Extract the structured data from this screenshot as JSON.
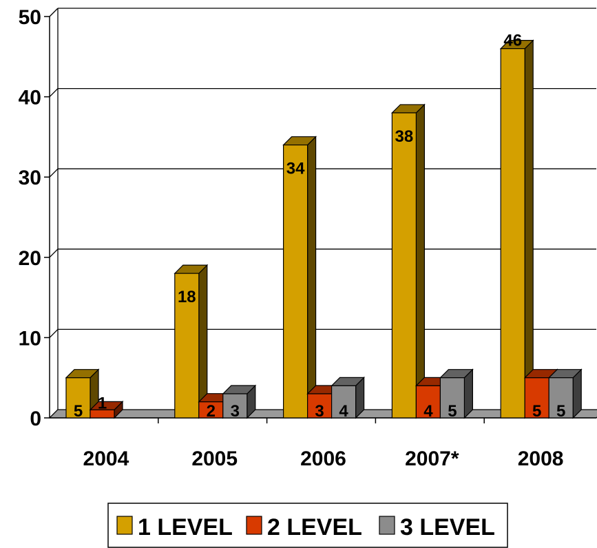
{
  "chart_data": {
    "type": "bar",
    "categories": [
      "2004",
      "2005",
      "2006",
      "2007*",
      "2008"
    ],
    "series": [
      {
        "name": "1 LEVEL",
        "color": "#D4A000",
        "values": [
          5,
          18,
          34,
          38,
          46
        ]
      },
      {
        "name": "2 LEVEL",
        "color": "#D83A00",
        "values": [
          1,
          2,
          3,
          4,
          5
        ]
      },
      {
        "name": "3 LEVEL",
        "color": "#8C8C8C",
        "values": [
          0,
          3,
          4,
          5,
          5
        ]
      }
    ],
    "data_labels": [
      [
        "5",
        "18",
        "34",
        "38",
        "46"
      ],
      [
        "1",
        "2",
        "3",
        "4",
        "5"
      ],
      [
        "",
        "3",
        "4",
        "5",
        "5"
      ]
    ],
    "yticks": [
      "0",
      "10",
      "20",
      "30",
      "40",
      "50"
    ],
    "ylim": [
      0,
      50
    ],
    "grid": true,
    "legend_position": "bottom",
    "style": "3d-column"
  }
}
